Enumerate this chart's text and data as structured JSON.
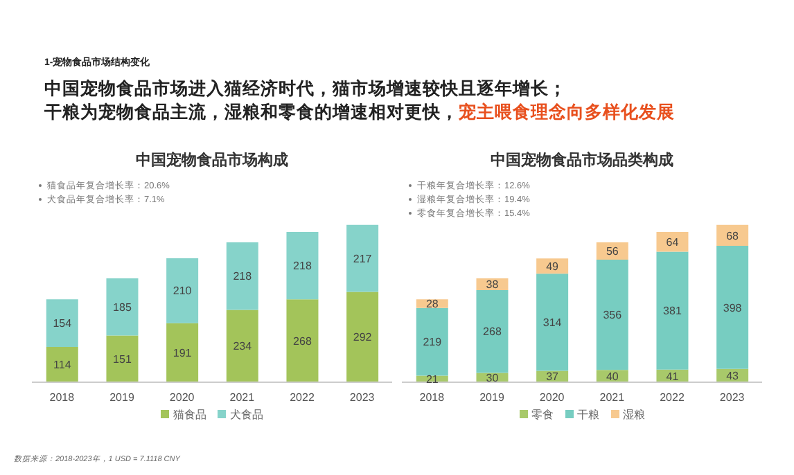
{
  "chart_data": [
    {
      "type": "bar",
      "title": "中国宠物食品市场构成",
      "stacked": true,
      "data_labels": true,
      "tick_labels": "x",
      "legend": "bottom",
      "categories": [
        "2018",
        "2019",
        "2020",
        "2021",
        "2022",
        "2023"
      ],
      "series": [
        {
          "name": "猫食品",
          "color": "#a3c45a",
          "values": [
            114,
            151,
            191,
            234,
            268,
            292
          ]
        },
        {
          "name": "犬食品",
          "color": "#86d3ca",
          "values": [
            154,
            185,
            210,
            218,
            218,
            217
          ]
        }
      ],
      "annotations": [
        "1-宠物食品市场结构变化",
        "中国宠物食品市场进入猫经济时代，猫市场增速较快且逐年增长；",
        "干粮为宠物食品主流，湿粮和零食的增速相对更快，",
        "宠主喂食理念向多样化发展",
        "猫食品年复合增长率：20.6%",
        "犬食品年复合增长率：7.1%",
        "数据来源：2018-2023年，1 USD = 7.1118 CNY"
      ]
    },
    {
      "type": "bar",
      "title": "中国宠物食品市场品类构成",
      "stacked": true,
      "data_labels": true,
      "tick_labels": "x",
      "legend": "bottom",
      "categories": [
        "2018",
        "2019",
        "2020",
        "2021",
        "2022",
        "2023"
      ],
      "series": [
        {
          "name": "零食",
          "color": "#a8c96a",
          "values": [
            21,
            30,
            37,
            40,
            41,
            43
          ]
        },
        {
          "name": "干粮",
          "color": "#77cdc1",
          "values": [
            219,
            268,
            314,
            356,
            381,
            398
          ]
        },
        {
          "name": "湿粮",
          "color": "#f7c98f",
          "values": [
            28,
            38,
            49,
            56,
            64,
            68
          ]
        }
      ],
      "annotations": [
        "干粮年复合增长率：12.6%",
        "湿粮年复合增长率：19.4%",
        "零食年复合增长率：15.4%"
      ]
    }
  ]
}
